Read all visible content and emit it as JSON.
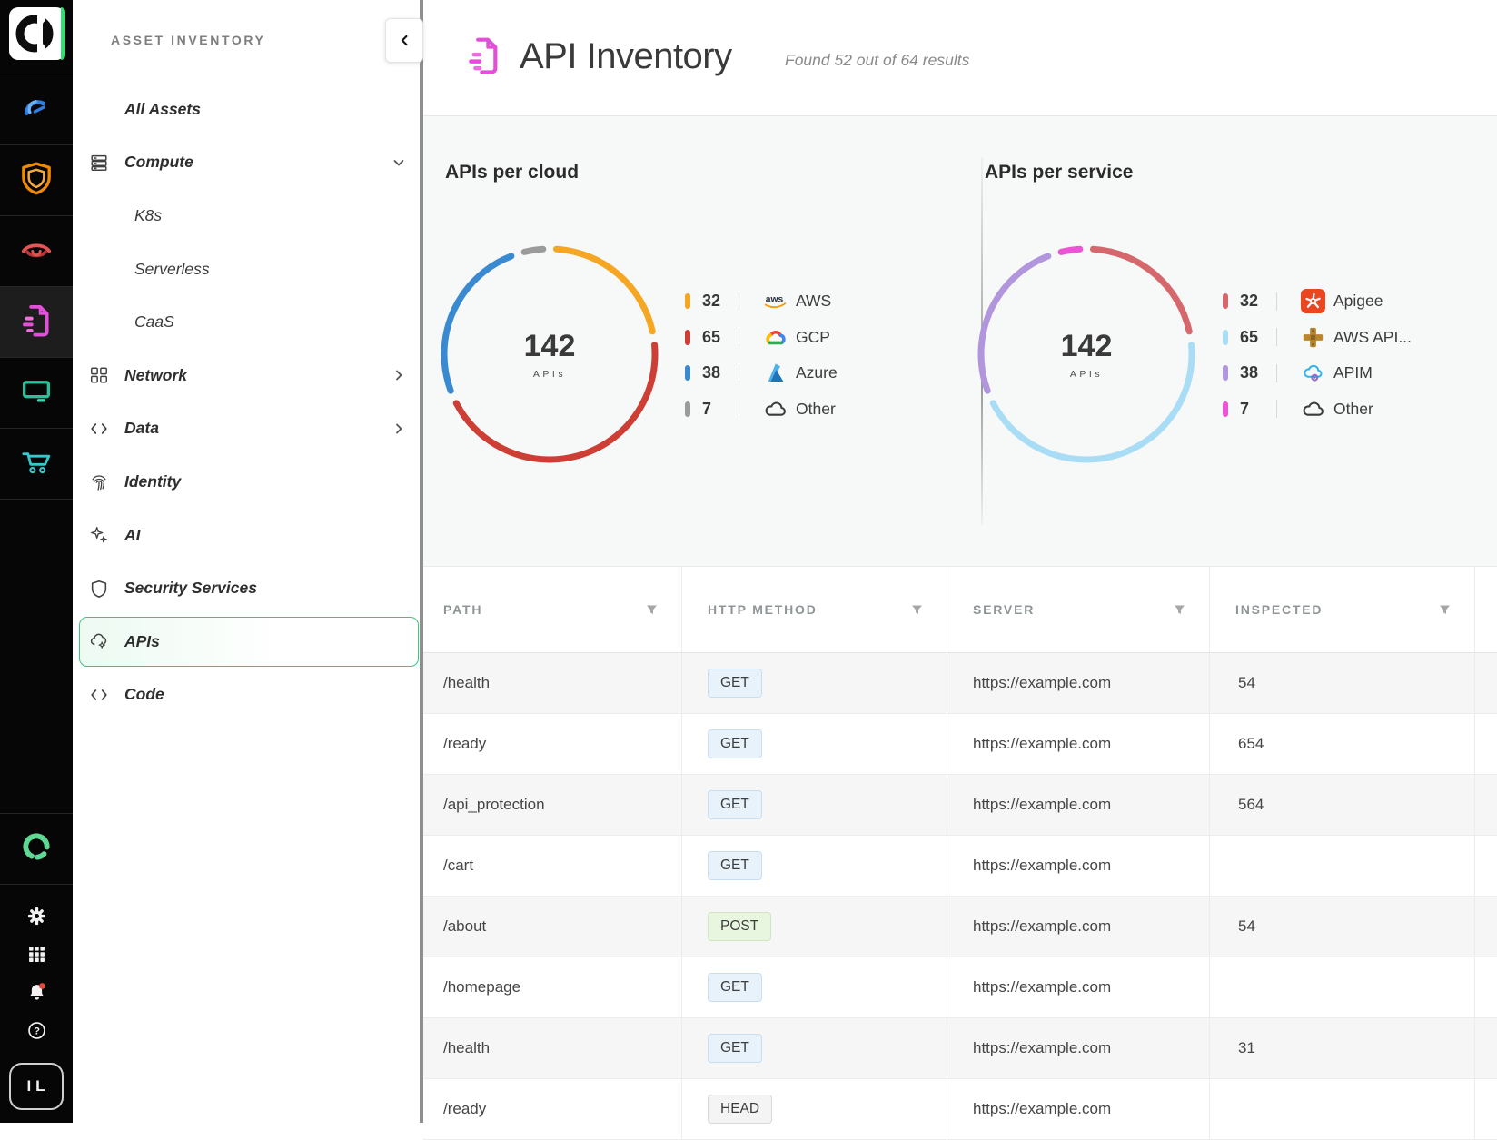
{
  "rail": {
    "logo": {
      "name": "orca-logo"
    },
    "top_icons": [
      {
        "name": "dashboard-gauge-icon",
        "key": "gauge",
        "active": false
      },
      {
        "name": "security-shield-icon",
        "key": "shieldOrange",
        "active": false
      },
      {
        "name": "discovery-eye-icon",
        "key": "eye",
        "active": false
      },
      {
        "name": "api-doc-icon",
        "key": "apidocPink",
        "active": true
      },
      {
        "name": "web-monitor-icon",
        "key": "monitor",
        "active": false
      },
      {
        "name": "shopping-cart-icon",
        "key": "cart",
        "active": false
      }
    ],
    "bottom_logo": {
      "name": "orca-ring-icon",
      "key": "ring"
    },
    "utility_icons": [
      {
        "name": "settings-gear-icon",
        "key": "gear",
        "badge": false
      },
      {
        "name": "apps-grid-icon",
        "key": "grid",
        "badge": false
      },
      {
        "name": "notifications-bell-icon",
        "key": "bell",
        "badge": true
      },
      {
        "name": "help-icon",
        "key": "help",
        "badge": false
      }
    ],
    "user_initials": "IL"
  },
  "sidebar": {
    "section_title": "ASSET INVENTORY",
    "collapse_icon": "chevron-left-icon",
    "items": [
      {
        "label": "All Assets",
        "noicon": true
      },
      {
        "label": "Compute",
        "icon": "servers",
        "icon_name": "compute-servers-icon",
        "chevron": "down"
      },
      {
        "label": "K8s",
        "indent": true
      },
      {
        "label": "Serverless",
        "indent": true
      },
      {
        "label": "CaaS",
        "indent": true
      },
      {
        "label": "Network",
        "icon": "network",
        "icon_name": "network-nodes-icon",
        "chevron": "right"
      },
      {
        "label": "Data",
        "icon": "code",
        "icon_name": "data-brackets-icon",
        "chevron": "right"
      },
      {
        "label": "Identity",
        "icon": "fingerprint",
        "icon_name": "fingerprint-icon"
      },
      {
        "label": "AI",
        "icon": "sparkles",
        "icon_name": "ai-sparkles-icon"
      },
      {
        "label": "Security Services",
        "icon": "shield",
        "icon_name": "shield-outline-icon"
      },
      {
        "label": "APIs",
        "icon": "cloudgear",
        "icon_name": "api-cloud-gear-icon",
        "active": true
      },
      {
        "label": "Code",
        "icon": "code",
        "icon_name": "code-brackets-icon"
      }
    ]
  },
  "header": {
    "title": "API Inventory",
    "subtitle": "Found 52 out of 64 results"
  },
  "chart_data": [
    {
      "type": "pie",
      "variant": "donut",
      "title": "APIs per cloud",
      "total": "142",
      "total_value": 142,
      "center_label": "APIs",
      "legend_position": "right",
      "segments": [
        {
          "label": "AWS",
          "value": 32,
          "color": "#f5a623",
          "icon": "aws"
        },
        {
          "label": "GCP",
          "value": 65,
          "color": "#cd3e35",
          "icon": "gcp"
        },
        {
          "label": "Azure",
          "value": 38,
          "color": "#3a8ad1",
          "icon": "azure"
        },
        {
          "label": "Other",
          "value": 7,
          "color": "#9b9b9b",
          "icon": "cloud"
        }
      ]
    },
    {
      "type": "pie",
      "variant": "donut",
      "title": "APIs per service",
      "total": "142",
      "total_value": 142,
      "center_label": "APIs",
      "legend_position": "right",
      "segments": [
        {
          "label": "Apigee",
          "value": 32,
          "color": "#d4686c",
          "icon": "apigee"
        },
        {
          "label": "AWS API...",
          "value": 65,
          "color": "#a9ddf5",
          "icon": "awsapigw"
        },
        {
          "label": "APIM",
          "value": 38,
          "color": "#b195dd",
          "icon": "apim"
        },
        {
          "label": "Other",
          "value": 7,
          "color": "#ed53d5",
          "icon": "cloud"
        }
      ]
    }
  ],
  "table": {
    "columns": [
      "PATH",
      "HTTP METHOD",
      "SERVER",
      "INSPECTED"
    ],
    "rows": [
      {
        "path": "/health",
        "method": "GET",
        "server": "https://example.com",
        "inspected": "54"
      },
      {
        "path": "/ready",
        "method": "GET",
        "server": "https://example.com",
        "inspected": "654"
      },
      {
        "path": "/api_protection",
        "method": "GET",
        "server": "https://example.com",
        "inspected": "564"
      },
      {
        "path": "/cart",
        "method": "GET",
        "server": "https://example.com",
        "inspected": ""
      },
      {
        "path": "/about",
        "method": "POST",
        "server": "https://example.com",
        "inspected": "54"
      },
      {
        "path": "/homepage",
        "method": "GET",
        "server": "https://example.com",
        "inspected": ""
      },
      {
        "path": "/health",
        "method": "GET",
        "server": "https://example.com",
        "inspected": "31"
      },
      {
        "path": "/ready",
        "method": "HEAD",
        "server": "https://example.com",
        "inspected": ""
      }
    ]
  }
}
